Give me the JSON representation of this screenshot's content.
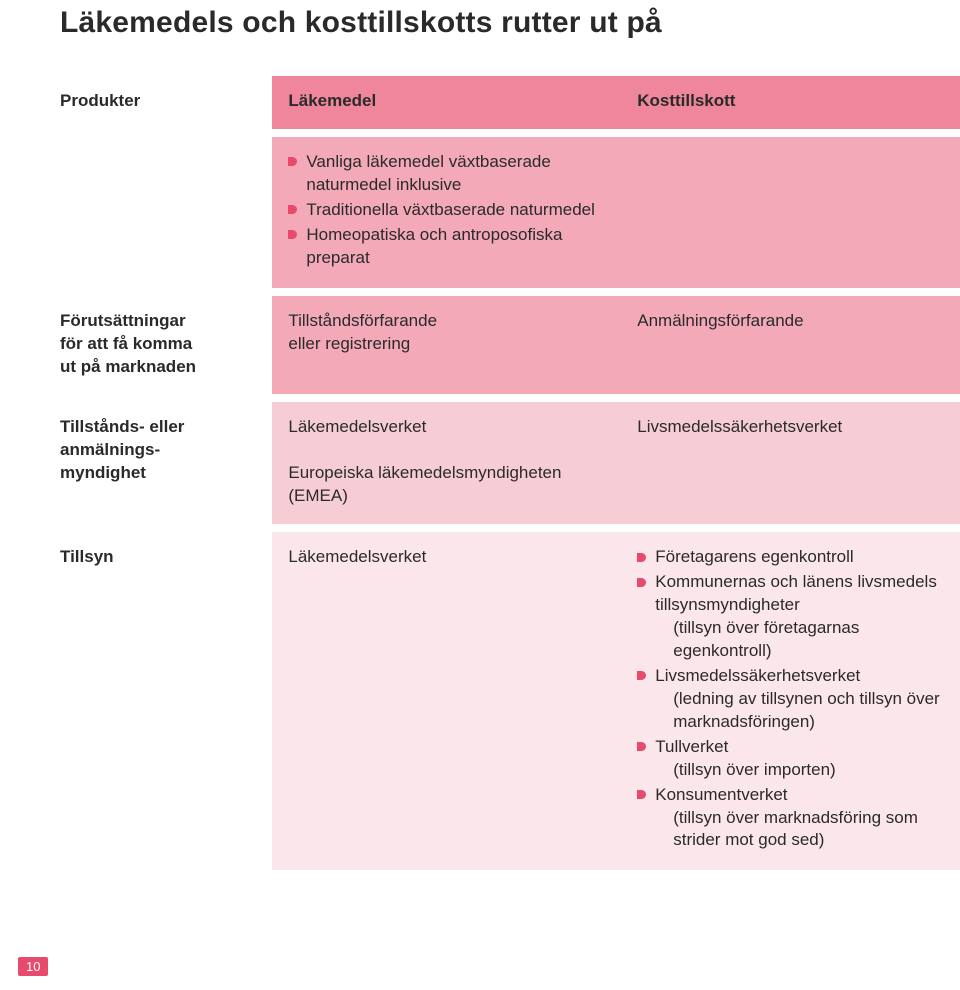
{
  "colors": {
    "bullet": "#e84a6b",
    "bg_strong": "#f0869c",
    "bg_mid": "#f3a9b8",
    "bg_light": "#f7cdd5",
    "bg_vlight": "#fbe7eb",
    "text": "#2a2a2a"
  },
  "page_number": "10",
  "title": "Läkemedels och kosttillskotts rutter ut på",
  "headers": {
    "col0": "Produkter",
    "col1": "Läkemedel",
    "col2": "Kosttillskott"
  },
  "row_products": {
    "lakemedel_bullets": [
      "Vanliga läkemedel växtbaserade naturmedel inklusive",
      "Traditionella växtbaserade naturmedel",
      "Homeopatiska och antroposofiska preparat"
    ]
  },
  "row_prereq": {
    "label_l1": "Förutsättningar",
    "label_l2": "för att få komma",
    "label_l3": "ut på marknaden",
    "col1_l1": "Tillståndsförfarande",
    "col1_l2": "eller registrering",
    "col2": "Anmälningsförfarande"
  },
  "row_authority": {
    "label_l1": "Tillstånds- eller",
    "label_l2": "anmälnings-",
    "label_l3": "myndighet",
    "col1_l1": "Läkemedelsverket",
    "col1_l2": "Europeiska läkemedelsmyndigheten (EMEA)",
    "col2": "Livsmedelssäkerhetsverket"
  },
  "row_tillsyn": {
    "label": "Tillsyn",
    "col1": "Läkemedelsverket",
    "col2_items": [
      {
        "main": "Företagarens egenkontroll"
      },
      {
        "main": "Kommunernas och länens livsmedels tillsynsmyndigheter",
        "sub": "(tillsyn över företagarnas egenkontroll)"
      },
      {
        "main": "Livsmedelssäkerhetsverket",
        "sub": "(ledning av tillsynen och tillsyn över marknadsföringen)"
      },
      {
        "main": "Tullverket",
        "sub": "(tillsyn över importen)"
      },
      {
        "main": "Konsumentverket",
        "sub": "(tillsyn över marknadsföring som strider mot god sed)"
      }
    ]
  }
}
